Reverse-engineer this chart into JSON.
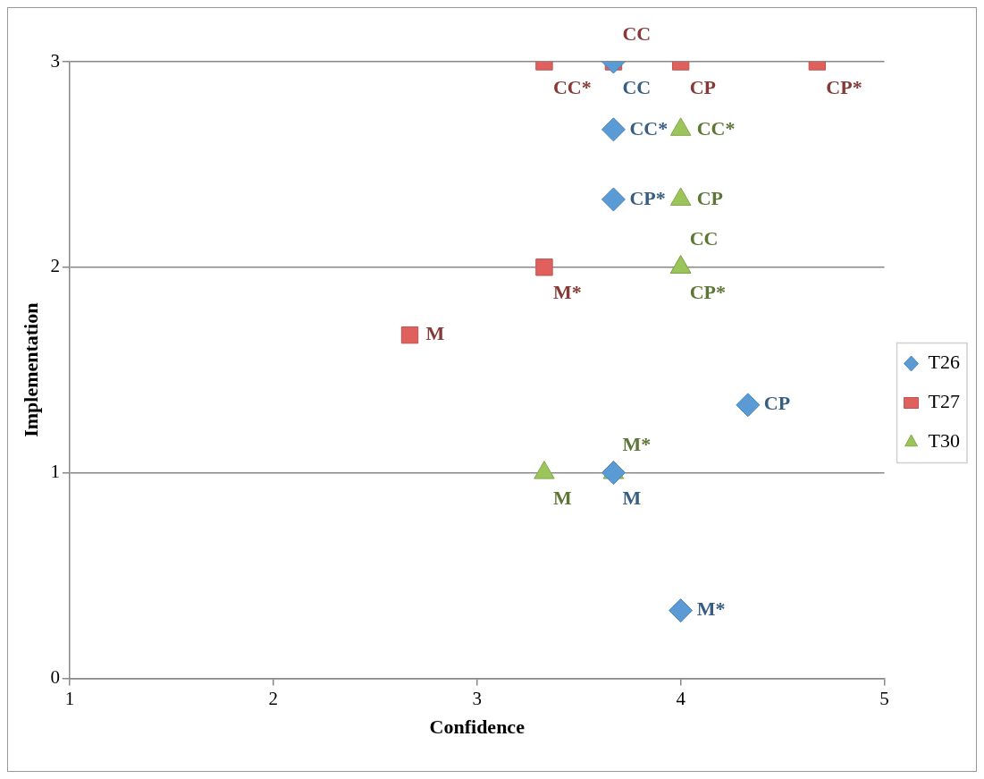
{
  "chart_data": {
    "type": "scatter",
    "xlabel": "Confidence",
    "ylabel": "Implementation",
    "xlim": [
      1,
      5
    ],
    "ylim": [
      0,
      3
    ],
    "xticks": [
      1,
      2,
      3,
      4,
      5
    ],
    "yticks": [
      0,
      1,
      2,
      3
    ],
    "grid": "y",
    "legend": "right",
    "series": [
      {
        "name": "T26",
        "color": "#5b9bd5",
        "marker": "diamond",
        "x": [
          3.67,
          3.67,
          3.67,
          4.33,
          3.67,
          4
        ],
        "values": [
          3,
          2.67,
          2.33,
          1.33,
          1,
          0.33
        ],
        "value_labels": [
          "CC",
          "CC*",
          "CP*",
          "CP",
          "M",
          "M*"
        ]
      },
      {
        "name": "T27",
        "color": "#e0605d",
        "marker": "square",
        "x": [
          3.33,
          3.67,
          4,
          4.67,
          3.33,
          2.67
        ],
        "values": [
          3,
          3,
          3,
          3,
          2,
          1.67
        ],
        "value_labels": [
          "CC*",
          "CC",
          "CP",
          "CP*",
          "M*",
          "M"
        ]
      },
      {
        "name": "T30",
        "color": "#9bc55a",
        "marker": "triangle",
        "x": [
          4,
          4,
          4,
          4,
          3.33,
          3.67
        ],
        "values": [
          2.67,
          2.33,
          2,
          2,
          1,
          1
        ],
        "value_labels": [
          "CC*",
          "CP",
          "CP*",
          "CC",
          "M",
          "M*"
        ]
      }
    ]
  }
}
